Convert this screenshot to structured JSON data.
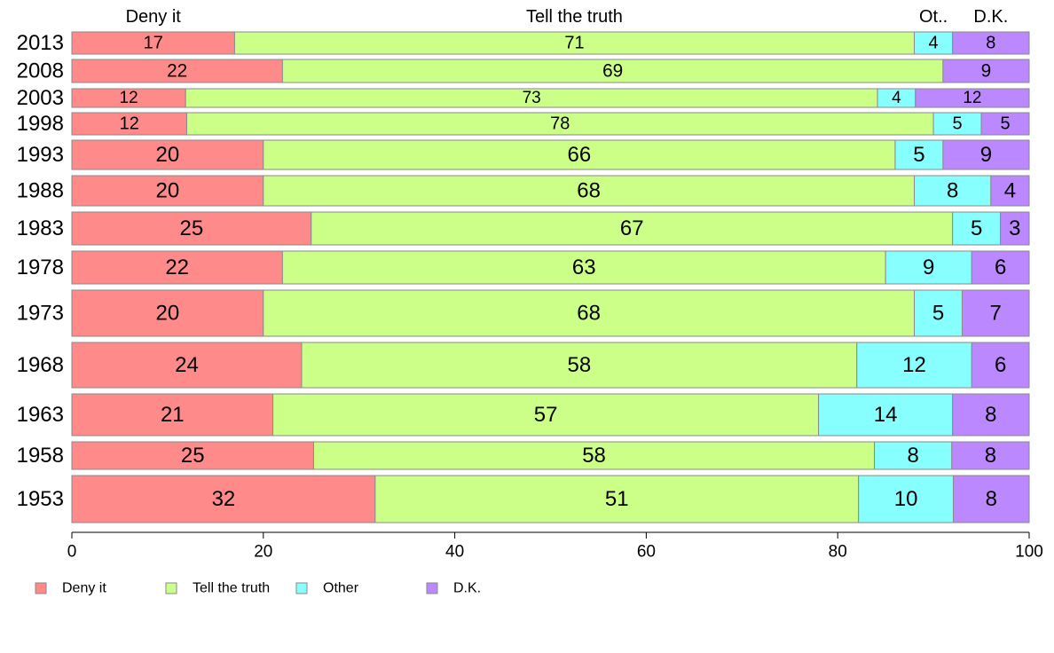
{
  "chart_data": {
    "type": "bar",
    "orientation": "horizontal",
    "stacked": "percent",
    "categories": [
      "2013",
      "2008",
      "2003",
      "1998",
      "1993",
      "1988",
      "1983",
      "1978",
      "1973",
      "1968",
      "1963",
      "1958",
      "1953"
    ],
    "series": [
      {
        "name": "Deny it",
        "color": "#ff8a8a",
        "values": [
          17,
          22,
          12,
          12,
          20,
          20,
          25,
          22,
          20,
          24,
          21,
          25,
          32
        ]
      },
      {
        "name": "Tell the truth",
        "color": "#ccff88",
        "values": [
          71,
          69,
          73,
          78,
          66,
          68,
          67,
          63,
          68,
          58,
          57,
          58,
          51
        ]
      },
      {
        "name": "Other",
        "color": "#88ffff",
        "values": [
          4,
          0,
          4,
          5,
          5,
          8,
          5,
          9,
          5,
          12,
          14,
          8,
          10
        ]
      },
      {
        "name": "D.K.",
        "color": "#bb88ff",
        "values": [
          8,
          9,
          12,
          5,
          9,
          4,
          3,
          6,
          7,
          6,
          8,
          8,
          8
        ]
      }
    ],
    "top_labels": [
      "Deny it",
      "Tell the truth",
      "Ot..",
      "D.K."
    ],
    "xlim": [
      0,
      100
    ],
    "xticks": [
      "0",
      "20",
      "40",
      "60",
      "80",
      "100"
    ],
    "legend": {
      "position": "bottom",
      "entries": [
        "Deny it",
        "Tell the truth",
        "Other",
        "D.K."
      ]
    }
  }
}
